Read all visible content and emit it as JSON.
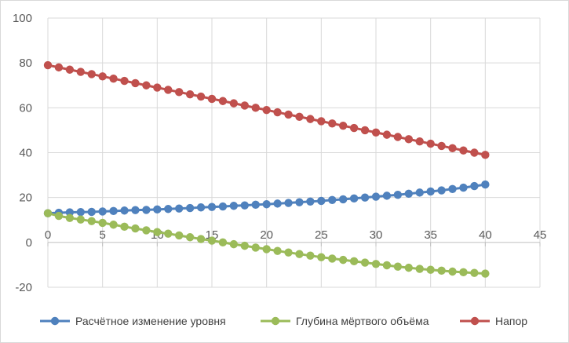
{
  "chart_data": {
    "type": "scatter",
    "mode": "lines+markers",
    "title": "",
    "xlabel": "",
    "ylabel": "",
    "xlim": [
      0,
      45
    ],
    "ylim": [
      -20,
      100
    ],
    "xticks": [
      "0",
      "5",
      "10",
      "15",
      "20",
      "25",
      "30",
      "35",
      "40",
      "45"
    ],
    "yticks": [
      "-20",
      "0",
      "20",
      "40",
      "60",
      "80",
      "100"
    ],
    "grid": true,
    "legend": "bottom",
    "x": [
      0,
      1,
      2,
      3,
      4,
      5,
      6,
      7,
      8,
      9,
      10,
      11,
      12,
      13,
      14,
      15,
      16,
      17,
      18,
      19,
      20,
      21,
      22,
      23,
      24,
      25,
      26,
      27,
      28,
      29,
      30,
      31,
      32,
      33,
      34,
      35,
      36,
      37,
      38,
      39,
      40
    ],
    "series": [
      {
        "name": "Расчётное изменение уровня",
        "color": "#4f81bd",
        "values": [
          13,
          13.2,
          13.4,
          13.5,
          13.6,
          13.8,
          14.0,
          14.2,
          14.4,
          14.5,
          14.7,
          14.9,
          15.1,
          15.3,
          15.6,
          15.8,
          16.0,
          16.3,
          16.5,
          16.8,
          17.0,
          17.3,
          17.6,
          17.9,
          18.2,
          18.5,
          18.9,
          19.2,
          19.6,
          20.0,
          20.4,
          20.8,
          21.2,
          21.7,
          22.2,
          22.7,
          23.2,
          23.8,
          24.4,
          25.1,
          25.8
        ]
      },
      {
        "name": "Глубина мёртвого объёма",
        "color": "#9bbb59",
        "values": [
          13,
          11.8,
          10.9,
          10.2,
          9.5,
          8.7,
          7.9,
          7.0,
          6.2,
          5.4,
          4.6,
          3.9,
          3.1,
          2.3,
          1.5,
          0.8,
          0.0,
          -0.8,
          -1.5,
          -2.3,
          -3.0,
          -3.8,
          -4.5,
          -5.2,
          -5.9,
          -6.6,
          -7.2,
          -7.8,
          -8.4,
          -9.0,
          -9.6,
          -10.2,
          -10.8,
          -11.3,
          -11.8,
          -12.2,
          -12.6,
          -13.0,
          -13.3,
          -13.6,
          -13.9
        ]
      },
      {
        "name": "Напор",
        "color": "#c0504d",
        "values": [
          79,
          78,
          77,
          76,
          75,
          74,
          73,
          72,
          71,
          70,
          69,
          68,
          67,
          66,
          65,
          64,
          63,
          62,
          61,
          60,
          59,
          58,
          57,
          56,
          55,
          54,
          53,
          52,
          51,
          50,
          49,
          48,
          47,
          46,
          45,
          44,
          43,
          42,
          41,
          40,
          39
        ]
      }
    ]
  }
}
